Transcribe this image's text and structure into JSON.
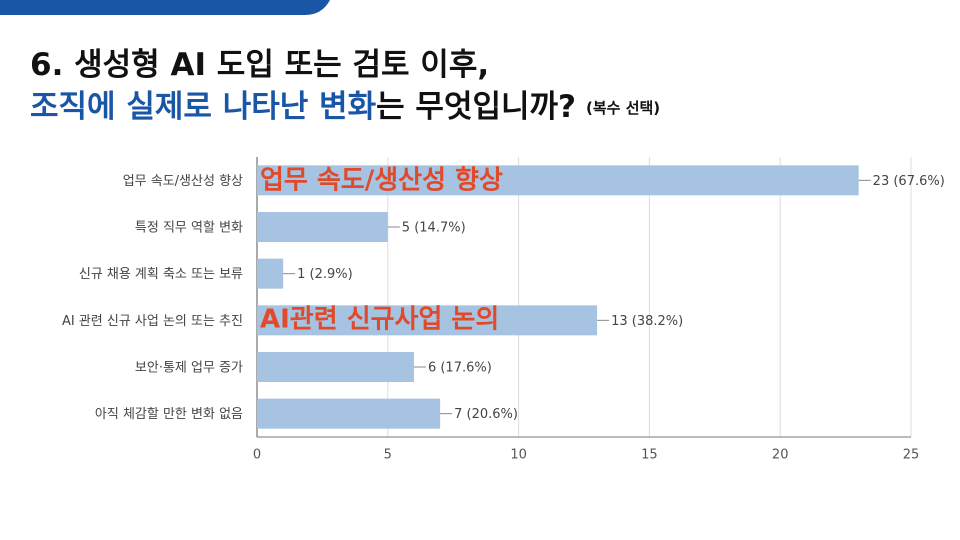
{
  "chart_data": {
    "type": "bar",
    "orientation": "horizontal",
    "title": "6. 생성형 AI 도입 또는 검토 이후,",
    "title_highlight": "조직에 실제로 나타난 변화",
    "title_rest": "는 무엇입니까?",
    "note": "(복수 선택)",
    "categories": [
      "업무 속도/생산성 향상",
      "특정 직무 역할 변화",
      "신규 채용 계획 축소 또는 보류",
      "AI 관련 신규 사업 논의 또는 추진",
      "보안·통제 업무 증가",
      "아직 체감할 만한 변화 없음"
    ],
    "values": [
      23,
      5,
      1,
      13,
      6,
      7
    ],
    "value_labels": [
      "23 (67.6%)",
      "5 (14.7%)",
      "1 (2.9%)",
      "13 (38.2%)",
      "6 (17.6%)",
      "7 (20.6%)"
    ],
    "color": "#a6c4e2",
    "xlim": [
      0,
      25
    ],
    "xticks": [
      0,
      5,
      10,
      15,
      20,
      25
    ],
    "grid": true,
    "annotations": [
      "업무 속도/생산성 향상",
      "AI관련 신규사업 논의"
    ]
  }
}
